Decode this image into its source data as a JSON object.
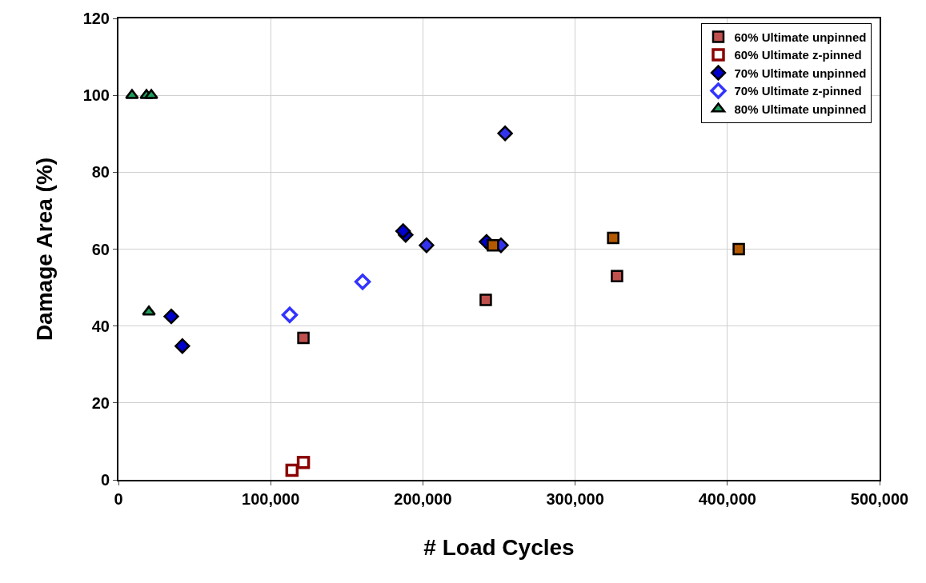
{
  "chart_data": {
    "type": "scatter",
    "xlabel": "# Load Cycles",
    "ylabel": "Damage Area (%)",
    "xlim": [
      0,
      500000
    ],
    "xticks": [
      {
        "value": 0,
        "label": "0"
      },
      {
        "value": 100000,
        "label": "100,000"
      },
      {
        "value": 200000,
        "label": "200,000"
      },
      {
        "value": 300000,
        "label": "300,000"
      },
      {
        "value": 400000,
        "label": "400,000"
      },
      {
        "value": 500000,
        "label": "500,000"
      }
    ],
    "ylim": [
      0,
      120
    ],
    "yticks": [
      0,
      20,
      40,
      60,
      80,
      100,
      120
    ],
    "grid": true,
    "legend": "top right",
    "series": [
      {
        "name": "60% Ultimate unpinned",
        "color": "#c0504d",
        "marker": "square",
        "x": [
          121500,
          241300,
          327500
        ],
        "values": [
          36.9,
          46.8,
          53.0
        ]
      },
      {
        "name": "60% Ultimate z-pinned",
        "color": "#8b0000",
        "marker": "square",
        "colors": [
          "#ffffff",
          "#ffffff"
        ],
        "x": [
          114000,
          121500
        ],
        "values": [
          2.5,
          4.5
        ]
      },
      {
        "name": "70% Ultimate unpinned",
        "color": "#0000cc",
        "colors": [
          "#0000cc",
          "#0000cc",
          "#0000cc",
          "#0000cc",
          "#3333ee",
          "#0000cc",
          "#3333ee",
          "#3333ee"
        ],
        "marker": "diamond",
        "x": [
          34700,
          42000,
          188700,
          187000,
          202400,
          241800,
          251300,
          254000
        ],
        "values": [
          42.5,
          34.8,
          63.7,
          64.7,
          61.0,
          61.9,
          61.0,
          90.1
        ]
      },
      {
        "name": "70% Ultimate z-pinned",
        "color": "#3333ff",
        "marker": "diamond",
        "colors": [
          "#ffffff",
          "#ffffff"
        ],
        "x": [
          112500,
          160400
        ],
        "values": [
          42.9,
          51.5
        ]
      },
      {
        "name": "80% Ultimate unpinned",
        "color": "#1e9e5a",
        "marker": "triangle",
        "x": [
          8900,
          18400,
          21600,
          20000
        ],
        "values": [
          100,
          100,
          100,
          43.7
        ]
      },
      {
        "color": "#b35900",
        "marker": "square",
        "x": [
          246000,
          325000,
          407500
        ],
        "values": [
          61.0,
          62.9,
          60.0
        ]
      }
    ]
  }
}
